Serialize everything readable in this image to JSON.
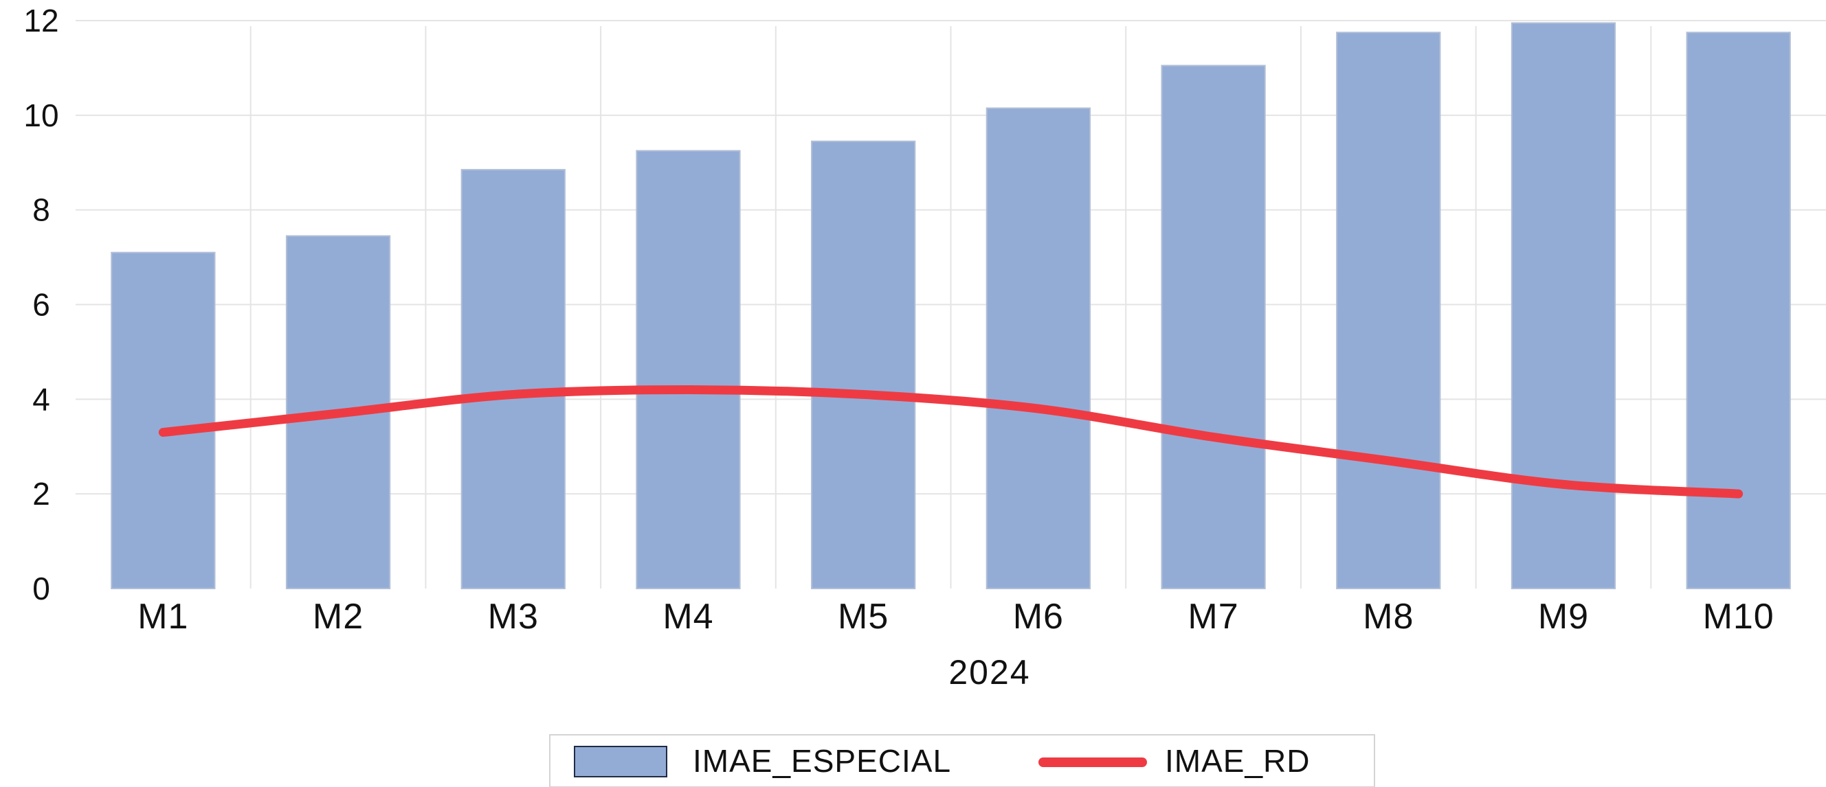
{
  "chart_data": {
    "type": "bar",
    "categories": [
      "M1",
      "M2",
      "M3",
      "M4",
      "M5",
      "M6",
      "M7",
      "M8",
      "M9",
      "M10"
    ],
    "series": [
      {
        "name": "IMAE_ESPECIAL",
        "type": "bar",
        "values": [
          7.1,
          7.45,
          8.85,
          9.25,
          9.45,
          10.15,
          11.05,
          11.75,
          11.95,
          11.75
        ],
        "color": "#93acd6"
      },
      {
        "name": "IMAE_RD",
        "type": "line",
        "values": [
          3.3,
          3.7,
          4.1,
          4.2,
          4.1,
          3.8,
          3.2,
          2.7,
          2.2,
          2.0
        ],
        "color": "#ee3b43"
      }
    ],
    "title": "",
    "xlabel": "2024",
    "ylabel": "",
    "ylim": [
      0,
      12
    ],
    "yticks": [
      0,
      2,
      4,
      6,
      8,
      10,
      12
    ],
    "grid": true,
    "legend_position": "bottom-center"
  }
}
